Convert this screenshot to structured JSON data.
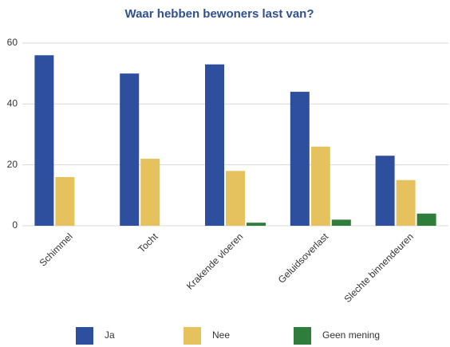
{
  "chart_data": {
    "type": "bar",
    "title": "Waar hebben bewoners last van?",
    "categories": [
      "Schimmel",
      "Tocht",
      "Krakende vloeren",
      "Geluidsoverlast",
      "Slechte binnendeuren"
    ],
    "series": [
      {
        "name": "Ja",
        "color": "#2e4e9e",
        "values": [
          56,
          50,
          53,
          44,
          23
        ]
      },
      {
        "name": "Nee",
        "color": "#e5c25e",
        "values": [
          16,
          22,
          18,
          26,
          15
        ]
      },
      {
        "name": "Geen mening",
        "color": "#2f7d3b",
        "values": [
          0,
          0,
          1,
          2,
          4
        ]
      }
    ],
    "ylim": [
      0,
      60
    ],
    "yticks": [
      0,
      20,
      40,
      60
    ],
    "grid": true,
    "legend": "bottom"
  }
}
